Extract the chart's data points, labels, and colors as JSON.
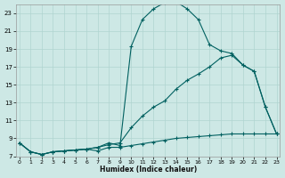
{
  "xlabel": "Humidex (Indice chaleur)",
  "bg_color": "#cde8e5",
  "grid_color": "#b0d4d0",
  "line_color": "#006060",
  "xlim": [
    0,
    23
  ],
  "ylim": [
    7,
    24
  ],
  "xticks": [
    0,
    1,
    2,
    3,
    4,
    5,
    6,
    7,
    8,
    9,
    10,
    11,
    12,
    13,
    14,
    15,
    16,
    17,
    18,
    19,
    20,
    21,
    22,
    23
  ],
  "yticks": [
    7,
    9,
    11,
    13,
    15,
    17,
    19,
    21,
    23
  ],
  "line1_x": [
    0,
    1,
    2,
    3,
    4,
    5,
    6,
    7,
    8,
    9,
    10,
    11,
    12,
    13,
    14,
    15,
    16,
    17,
    18,
    19,
    20,
    21,
    22,
    23
  ],
  "line1_y": [
    8.5,
    7.5,
    7.2,
    7.5,
    7.6,
    7.7,
    7.8,
    8.0,
    8.5,
    8.2,
    19.3,
    22.3,
    23.5,
    24.2,
    24.3,
    23.5,
    22.3,
    19.5,
    18.8,
    18.5,
    17.2,
    16.5,
    12.5,
    9.5
  ],
  "line2_x": [
    0,
    1,
    2,
    3,
    4,
    5,
    6,
    7,
    8,
    9,
    10,
    11,
    12,
    13,
    14,
    15,
    16,
    17,
    18,
    19,
    20,
    21,
    22,
    23
  ],
  "line2_y": [
    8.5,
    7.5,
    7.2,
    7.5,
    7.6,
    7.7,
    7.8,
    8.0,
    8.3,
    8.5,
    10.2,
    11.5,
    12.5,
    13.2,
    14.5,
    15.5,
    16.2,
    17.0,
    18.0,
    18.3,
    17.2,
    16.5,
    12.5,
    9.5
  ],
  "line3_x": [
    0,
    1,
    2,
    3,
    4,
    5,
    6,
    7,
    8,
    9,
    10,
    11,
    12,
    13,
    14,
    15,
    16,
    17,
    18,
    19,
    20,
    21,
    22,
    23
  ],
  "line3_y": [
    8.5,
    7.5,
    7.2,
    7.5,
    7.6,
    7.7,
    7.8,
    7.6,
    8.0,
    8.0,
    8.2,
    8.4,
    8.6,
    8.8,
    9.0,
    9.1,
    9.2,
    9.3,
    9.4,
    9.5,
    9.5,
    9.5,
    9.5,
    9.5
  ]
}
